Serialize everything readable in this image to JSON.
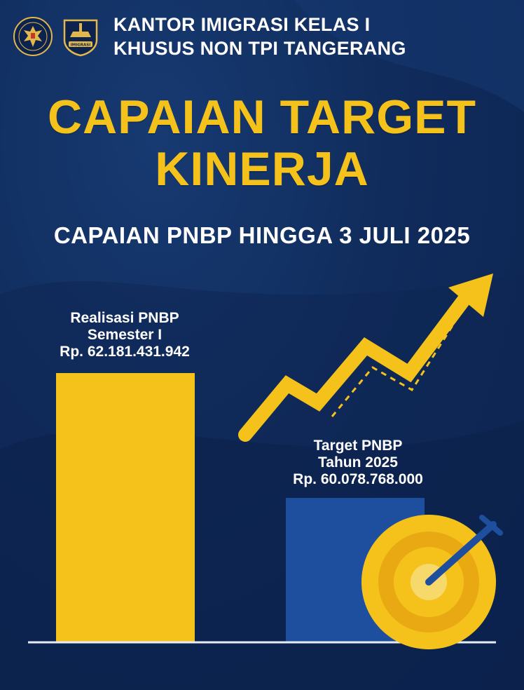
{
  "header": {
    "line1": "KANTOR IMIGRASI KELAS I",
    "line2": "KHUSUS NON TPI TANGERANG",
    "logo1_text": "KEMENTERIAN IMIGRASI DAN PEMASYARAKATAN REPUBLIK INDONESIA",
    "logo2_text": "IMIGRASI"
  },
  "title_line1": "CAPAIAN TARGET",
  "title_line2": "KINERJA",
  "subtitle": "CAPAIAN PNBP HINGGA 3 JULI 2025",
  "colors": {
    "background": "#102c5c",
    "accent_yellow": "#f5c21b",
    "bar_blue": "#1d4f9e",
    "text_white": "#ffffff"
  },
  "chart_data": {
    "type": "bar",
    "categories": [
      "Realisasi PNBP Semester I",
      "Target PNBP Tahun 2025"
    ],
    "values": [
      62181431942,
      60078768000
    ],
    "labels": [
      [
        "Realisasi PNBP",
        "Semester I",
        "Rp. 62.181.431.942"
      ],
      [
        "Target PNBP",
        "Tahun 2025",
        "Rp. 60.078.768.000"
      ]
    ],
    "bar_colors": [
      "#f5c21b",
      "#1d4f9e"
    ]
  }
}
